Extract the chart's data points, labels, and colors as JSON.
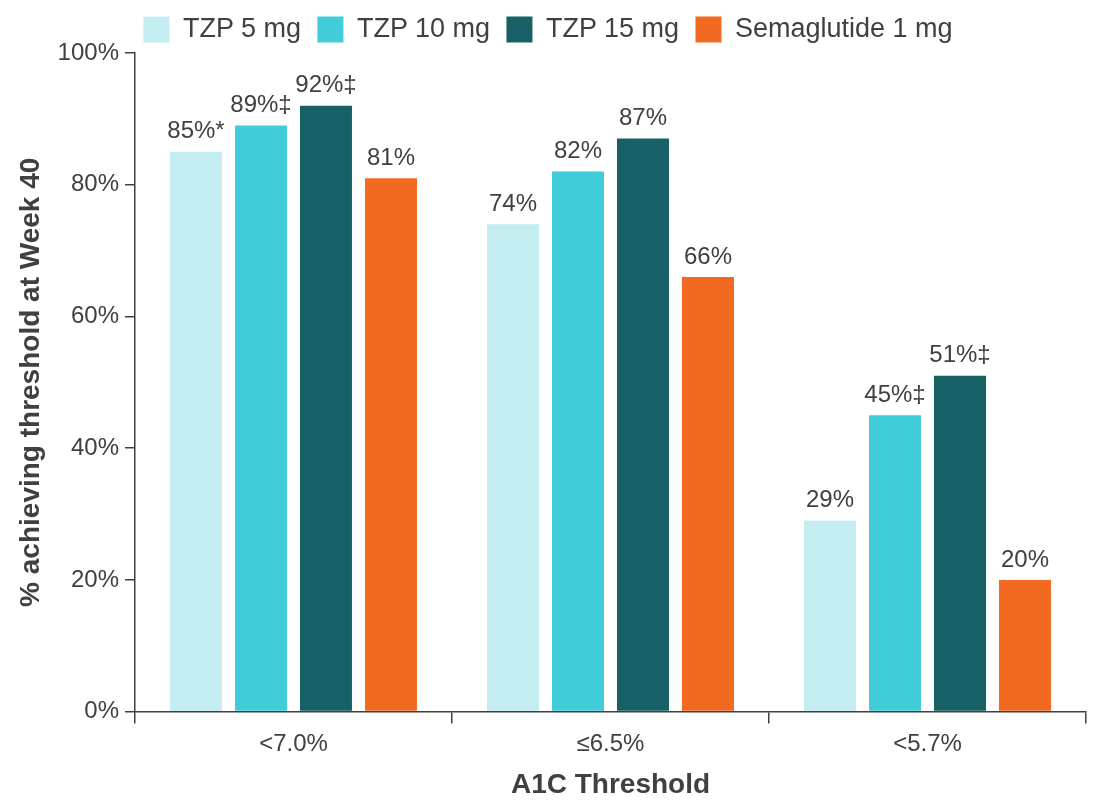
{
  "chart_data": {
    "type": "bar",
    "xlabel": "A1C Threshold",
    "ylabel": "% achieving threshold at Week 40",
    "categories": [
      "<7.0%",
      "≤6.5%",
      "<5.7%"
    ],
    "series": [
      {
        "name": "TZP 5 mg",
        "color": "#c3edf0",
        "values": [
          85,
          74,
          29
        ],
        "value_labels": [
          "85%*",
          "74%",
          "29%"
        ]
      },
      {
        "name": "TZP 10 mg",
        "color": "#40ccd8",
        "values": [
          89,
          82,
          45
        ],
        "value_labels": [
          "89%‡",
          "82%",
          "45%‡"
        ]
      },
      {
        "name": "TZP 15 mg",
        "color": "#176065",
        "values": [
          92,
          87,
          51
        ],
        "value_labels": [
          "92%‡",
          "87%",
          "51%‡"
        ]
      },
      {
        "name": "Semaglutide 1 mg",
        "color": "#f26a21",
        "values": [
          81,
          66,
          20
        ],
        "value_labels": [
          "81%",
          "66%",
          "20%"
        ]
      }
    ],
    "ylim": [
      0,
      100
    ],
    "yticks": [
      {
        "value": 0,
        "label": "0%"
      },
      {
        "value": 20,
        "label": "20%"
      },
      {
        "value": 40,
        "label": "40%"
      },
      {
        "value": 60,
        "label": "60%"
      },
      {
        "value": 80,
        "label": "80%"
      },
      {
        "value": 100,
        "label": "100%"
      }
    ],
    "grid": false,
    "legend": "top"
  }
}
